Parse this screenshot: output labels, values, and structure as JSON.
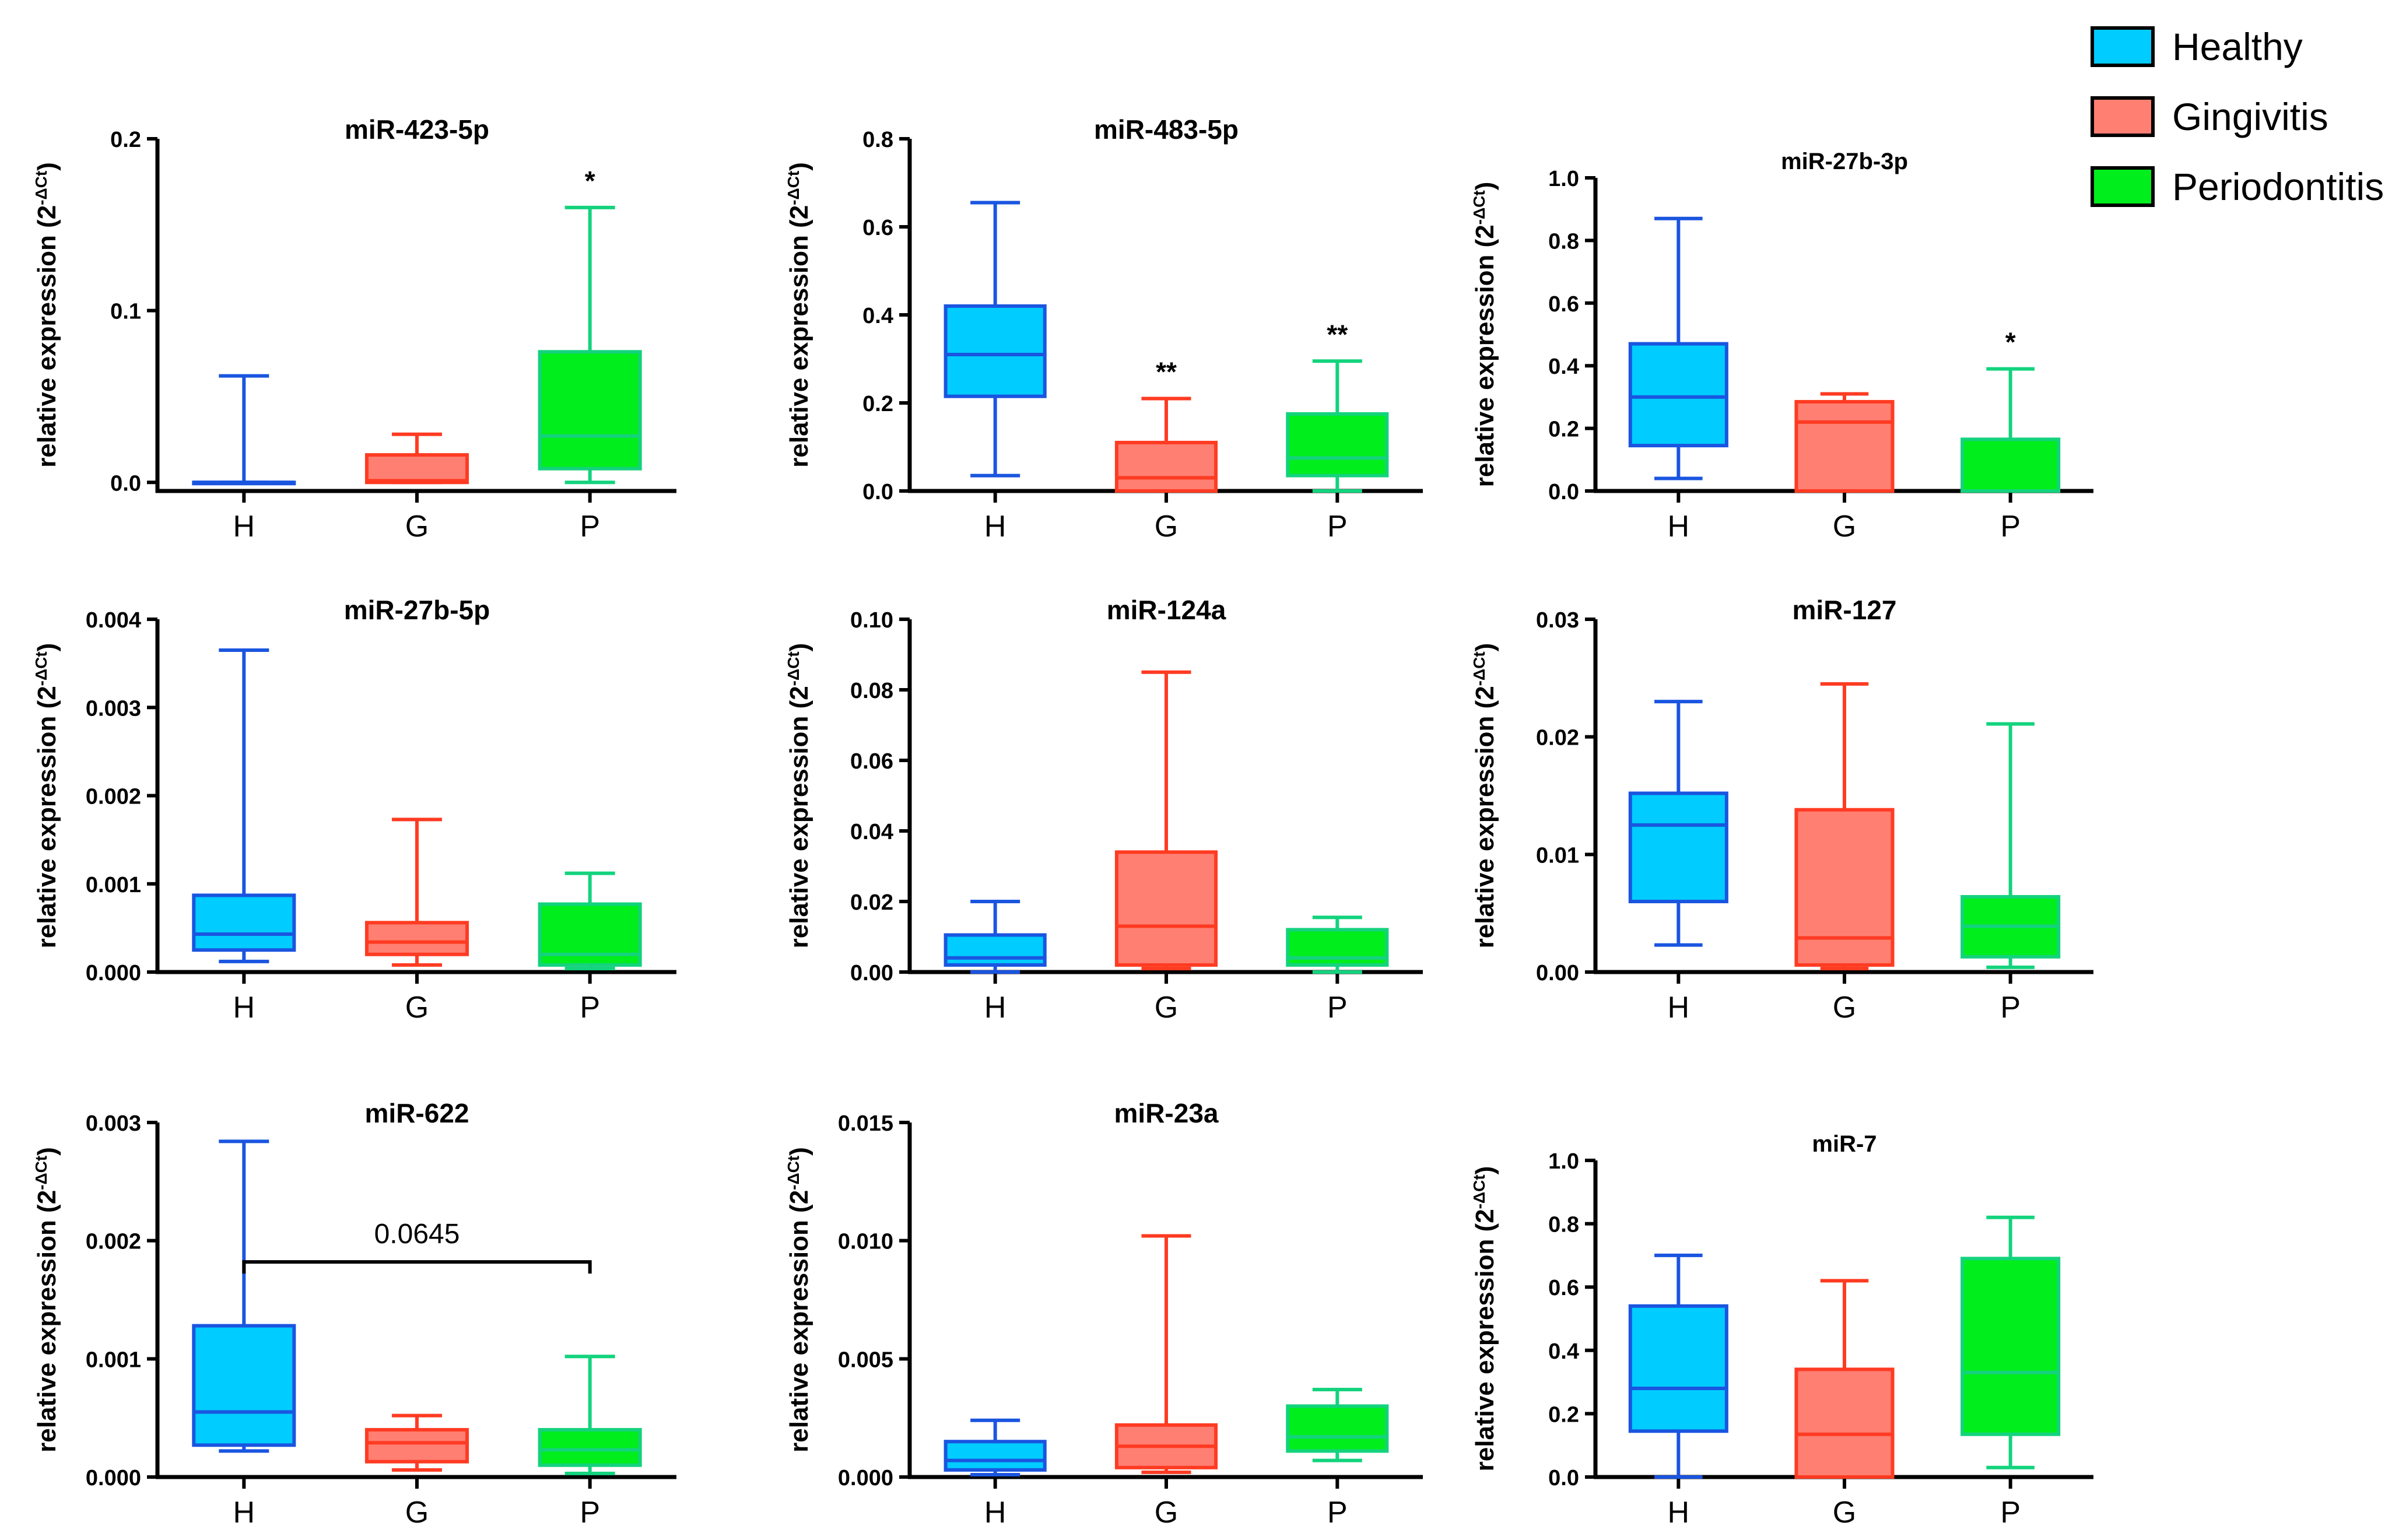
{
  "legend": {
    "items": [
      {
        "label": "Healthy",
        "fill": "#00ccff",
        "stroke": "#1a55e0"
      },
      {
        "label": "Gingivitis",
        "fill": "#ff7f73",
        "stroke": "#ff3b22"
      },
      {
        "label": "Periodontitis",
        "fill": "#00ee1c",
        "stroke": "#13d37d"
      }
    ]
  },
  "chart_data": [
    {
      "type": "box",
      "title": "miR-423-5p",
      "ylabel": "relative expression (2",
      "ylabel_sup": "-ΔCt",
      "ylabel_close": ")",
      "ylim": [
        -0.005,
        0.2
      ],
      "yticks": [
        0.0,
        0.1,
        0.2
      ],
      "ytick_labels": [
        "0.0",
        "0.1",
        "0.2"
      ],
      "categories": [
        "H",
        "G",
        "P"
      ],
      "boxes": [
        {
          "min": 0.0,
          "q1": 0.0,
          "median": 0.0,
          "q3": 0.0,
          "max": 0.062
        },
        {
          "min": 0.0,
          "q1": 0.0,
          "median": 0.001,
          "q3": 0.016,
          "max": 0.028
        },
        {
          "min": 0.0,
          "q1": 0.008,
          "median": 0.027,
          "q3": 0.076,
          "max": 0.16
        }
      ],
      "annotations": [
        {
          "category": 2,
          "text": "*"
        }
      ]
    },
    {
      "type": "box",
      "title": "miR-483-5p",
      "ylabel": "relative expression (2",
      "ylabel_sup": "-ΔCt",
      "ylabel_close": ")",
      "ylim": [
        0,
        0.8
      ],
      "yticks": [
        0.0,
        0.2,
        0.4,
        0.6,
        0.8
      ],
      "ytick_labels": [
        "0.0",
        "0.2",
        "0.4",
        "0.6",
        "0.8"
      ],
      "categories": [
        "H",
        "G",
        "P"
      ],
      "boxes": [
        {
          "min": 0.035,
          "q1": 0.215,
          "median": 0.31,
          "q3": 0.42,
          "max": 0.655
        },
        {
          "min": 0.0,
          "q1": 0.0,
          "median": 0.03,
          "q3": 0.11,
          "max": 0.21
        },
        {
          "min": 0.0,
          "q1": 0.035,
          "median": 0.075,
          "q3": 0.175,
          "max": 0.295
        }
      ],
      "annotations": [
        {
          "category": 1,
          "text": "**"
        },
        {
          "category": 2,
          "text": "**"
        }
      ]
    },
    {
      "type": "box",
      "title": "miR-27b-3p",
      "ylabel": "relative expression (2",
      "ylabel_sup": "-ΔCt",
      "ylabel_close": ")",
      "ylim": [
        0,
        1.0
      ],
      "yticks": [
        0.0,
        0.2,
        0.4,
        0.6,
        0.8,
        1.0
      ],
      "ytick_labels": [
        "0.0",
        "0.2",
        "0.4",
        "0.6",
        "0.8",
        "1.0"
      ],
      "categories": [
        "H",
        "G",
        "P"
      ],
      "boxes": [
        {
          "min": 0.04,
          "q1": 0.145,
          "median": 0.3,
          "q3": 0.47,
          "max": 0.87
        },
        {
          "min": 0.0,
          "q1": 0.0,
          "median": 0.22,
          "q3": 0.285,
          "max": 0.31
        },
        {
          "min": 0.0,
          "q1": 0.0,
          "median": 0.0,
          "q3": 0.165,
          "max": 0.39
        }
      ],
      "annotations": [
        {
          "category": 2,
          "text": "*"
        }
      ]
    },
    {
      "type": "box",
      "title": "miR-27b-5p",
      "ylabel": "relative expression (2",
      "ylabel_sup": "-ΔCt",
      "ylabel_close": ")",
      "ylim": [
        0,
        0.004
      ],
      "yticks": [
        0.0,
        0.001,
        0.002,
        0.003,
        0.004
      ],
      "ytick_labels": [
        "0.000",
        "0.001",
        "0.002",
        "0.003",
        "0.004"
      ],
      "categories": [
        "H",
        "G",
        "P"
      ],
      "boxes": [
        {
          "min": 0.00012,
          "q1": 0.00025,
          "median": 0.00043,
          "q3": 0.00087,
          "max": 0.00365
        },
        {
          "min": 8e-05,
          "q1": 0.0002,
          "median": 0.00034,
          "q3": 0.00056,
          "max": 0.00173
        },
        {
          "min": 4e-05,
          "q1": 8e-05,
          "median": 0.0002,
          "q3": 0.00077,
          "max": 0.00112
        }
      ],
      "annotations": []
    },
    {
      "type": "box",
      "title": "miR-124a",
      "ylabel": "relative expression (2",
      "ylabel_sup": "-ΔCt",
      "ylabel_close": ")",
      "ylim": [
        0,
        0.1
      ],
      "yticks": [
        0.0,
        0.02,
        0.04,
        0.06,
        0.08,
        0.1
      ],
      "ytick_labels": [
        "0.00",
        "0.02",
        "0.04",
        "0.06",
        "0.08",
        "0.10"
      ],
      "categories": [
        "H",
        "G",
        "P"
      ],
      "boxes": [
        {
          "min": 0.0,
          "q1": 0.002,
          "median": 0.004,
          "q3": 0.0105,
          "max": 0.02
        },
        {
          "min": 0.001,
          "q1": 0.002,
          "median": 0.013,
          "q3": 0.034,
          "max": 0.085
        },
        {
          "min": 0.0,
          "q1": 0.002,
          "median": 0.004,
          "q3": 0.012,
          "max": 0.0155
        }
      ],
      "annotations": []
    },
    {
      "type": "box",
      "title": "miR-127",
      "ylabel": "relative expression (2",
      "ylabel_sup": "-ΔCt",
      "ylabel_close": ")",
      "ylim": [
        0,
        0.03
      ],
      "yticks": [
        0.0,
        0.01,
        0.02,
        0.03
      ],
      "ytick_labels": [
        "0.00",
        "0.01",
        "0.02",
        "0.03"
      ],
      "categories": [
        "H",
        "G",
        "P"
      ],
      "boxes": [
        {
          "min": 0.0023,
          "q1": 0.006,
          "median": 0.0125,
          "q3": 0.0152,
          "max": 0.023
        },
        {
          "min": 0.0003,
          "q1": 0.0006,
          "median": 0.0029,
          "q3": 0.0138,
          "max": 0.0245
        },
        {
          "min": 0.0004,
          "q1": 0.0013,
          "median": 0.0039,
          "q3": 0.0064,
          "max": 0.0211
        }
      ],
      "annotations": []
    },
    {
      "type": "box",
      "title": "miR-622",
      "ylabel": "relative expression (2",
      "ylabel_sup": "-ΔCt",
      "ylabel_close": ")",
      "ylim": [
        0,
        0.003
      ],
      "yticks": [
        0.0,
        0.001,
        0.002,
        0.003
      ],
      "ytick_labels": [
        "0.000",
        "0.001",
        "0.002",
        "0.003"
      ],
      "categories": [
        "H",
        "G",
        "P"
      ],
      "boxes": [
        {
          "min": 0.00022,
          "q1": 0.00027,
          "median": 0.00055,
          "q3": 0.00128,
          "max": 0.00284
        },
        {
          "min": 6e-05,
          "q1": 0.00013,
          "median": 0.00029,
          "q3": 0.0004,
          "max": 0.00052
        },
        {
          "min": 3e-05,
          "q1": 0.0001,
          "median": 0.00023,
          "q3": 0.0004,
          "max": 0.00102
        }
      ],
      "annotations": [],
      "bracket": {
        "from": 0,
        "to": 2,
        "y": 0.00182,
        "label": "0.0645"
      }
    },
    {
      "type": "box",
      "title": "miR-23a",
      "ylabel": "relative expression (2",
      "ylabel_sup": "-ΔCt",
      "ylabel_close": ")",
      "ylim": [
        0,
        0.015
      ],
      "yticks": [
        0.0,
        0.005,
        0.01,
        0.015
      ],
      "ytick_labels": [
        "0.000",
        "0.005",
        "0.010",
        "0.015"
      ],
      "categories": [
        "H",
        "G",
        "P"
      ],
      "boxes": [
        {
          "min": 0.0001,
          "q1": 0.0003,
          "median": 0.0007,
          "q3": 0.0015,
          "max": 0.0024
        },
        {
          "min": 0.0002,
          "q1": 0.0004,
          "median": 0.0013,
          "q3": 0.0022,
          "max": 0.0102
        },
        {
          "min": 0.0007,
          "q1": 0.0011,
          "median": 0.0017,
          "q3": 0.003,
          "max": 0.0037
        }
      ],
      "annotations": []
    },
    {
      "type": "box",
      "title": "miR-7",
      "ylabel": "relative expression (2",
      "ylabel_sup": "-ΔCt",
      "ylabel_close": ")",
      "ylim": [
        0,
        1.0
      ],
      "yticks": [
        0.0,
        0.2,
        0.4,
        0.6,
        0.8,
        1.0
      ],
      "ytick_labels": [
        "0.0",
        "0.2",
        "0.4",
        "0.6",
        "0.8",
        "1.0"
      ],
      "categories": [
        "H",
        "G",
        "P"
      ],
      "boxes": [
        {
          "min": 0.0,
          "q1": 0.145,
          "median": 0.28,
          "q3": 0.54,
          "max": 0.7
        },
        {
          "min": 0.0,
          "q1": 0.0,
          "median": 0.135,
          "q3": 0.34,
          "max": 0.62
        },
        {
          "min": 0.03,
          "q1": 0.135,
          "median": 0.33,
          "q3": 0.69,
          "max": 0.82
        }
      ],
      "annotations": []
    }
  ]
}
